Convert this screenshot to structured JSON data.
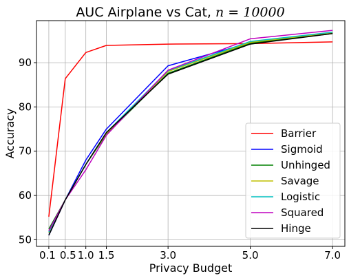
{
  "chart_data": {
    "type": "line",
    "title": "AUC Airplane vs Cat, ",
    "title_math": "n = 10000",
    "xlabel": "Privacy Budget",
    "ylabel": "Accuracy",
    "x": [
      0.1,
      0.5,
      1.0,
      1.5,
      3.0,
      5.0,
      7.0
    ],
    "x_tick_labels": [
      "0.1",
      "0.5",
      "1.0",
      "1.5",
      "3.0",
      "5.0",
      "7.0"
    ],
    "xlim": [
      -0.2,
      7.3
    ],
    "ylim": [
      48.5,
      99.5
    ],
    "y_ticks": [
      50,
      60,
      70,
      80,
      90
    ],
    "grid": true,
    "legend_position": "lower-right",
    "series": [
      {
        "name": "Barrier",
        "color": "#ff0000",
        "values": [
          55.2,
          86.4,
          92.3,
          93.9,
          94.2,
          94.3,
          94.7
        ]
      },
      {
        "name": "Sigmoid",
        "color": "#0000ff",
        "values": [
          51.0,
          59.0,
          68.0,
          75.0,
          89.3,
          94.5,
          96.8
        ]
      },
      {
        "name": "Unhinged",
        "color": "#008000",
        "values": [
          52.4,
          59.0,
          67.0,
          73.8,
          87.6,
          94.4,
          96.6
        ]
      },
      {
        "name": "Savage",
        "color": "#bfbf00",
        "values": [
          51.6,
          59.0,
          67.0,
          74.0,
          88.0,
          94.6,
          96.8
        ]
      },
      {
        "name": "Logistic",
        "color": "#00bfbf",
        "values": [
          51.7,
          59.0,
          67.0,
          74.2,
          88.2,
          94.8,
          96.9
        ]
      },
      {
        "name": "Squared",
        "color": "#bf00bf",
        "values": [
          52.0,
          59.0,
          65.8,
          73.6,
          88.3,
          95.4,
          97.3
        ]
      },
      {
        "name": "Hinge",
        "color": "#000000",
        "values": [
          51.0,
          59.0,
          67.0,
          74.2,
          87.4,
          94.2,
          96.6
        ]
      }
    ]
  }
}
